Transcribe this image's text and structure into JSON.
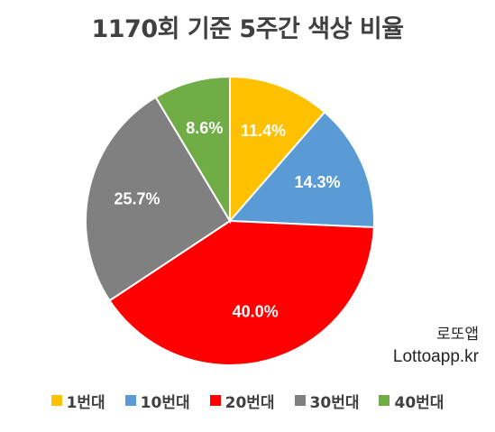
{
  "chart_data": {
    "type": "pie",
    "title": "1170회 기준 5주간 색상 비율",
    "slices": [
      {
        "label": "1번대",
        "value": 11.4,
        "text": "11.4%",
        "color": "#FFC000"
      },
      {
        "label": "10번대",
        "value": 14.3,
        "text": "14.3%",
        "color": "#5B9BD5"
      },
      {
        "label": "20번대",
        "value": 40.0,
        "text": "40.0%",
        "color": "#FF0000"
      },
      {
        "label": "30번대",
        "value": 25.7,
        "text": "25.7%",
        "color": "#808080"
      },
      {
        "label": "40번대",
        "value": 8.6,
        "text": "8.6%",
        "color": "#70AD47"
      }
    ],
    "start_angle": "12 o'clock",
    "direction": "clockwise",
    "legend": "bottom"
  },
  "watermark": {
    "line1": "로또앱",
    "line2": "Lottoapp.kr"
  }
}
